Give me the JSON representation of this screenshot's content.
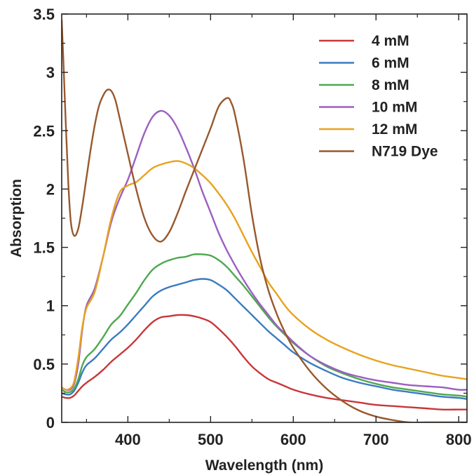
{
  "chart_data": {
    "type": "line",
    "title": "",
    "xlabel": "Wavelength (nm)",
    "ylabel": "Absorption",
    "xlim": [
      320,
      810
    ],
    "ylim": [
      0,
      3.5
    ],
    "xticks": [
      400,
      500,
      600,
      700,
      800
    ],
    "yticks": [
      0,
      0.5,
      1,
      1.5,
      2,
      2.5,
      3,
      3.5
    ],
    "xtick_labels": [
      "400",
      "500",
      "600",
      "700",
      "800"
    ],
    "ytick_labels": [
      "0",
      "0.5",
      "1",
      "1.5",
      "2",
      "2.5",
      "3",
      "3.5"
    ],
    "grid": false,
    "legend_position": "top-right",
    "series": [
      {
        "name": "4 mM",
        "color": "#c8373a",
        "points": [
          [
            320,
            0.22
          ],
          [
            325,
            0.21
          ],
          [
            330,
            0.21
          ],
          [
            335,
            0.23
          ],
          [
            340,
            0.27
          ],
          [
            345,
            0.31
          ],
          [
            350,
            0.34
          ],
          [
            360,
            0.39
          ],
          [
            370,
            0.45
          ],
          [
            380,
            0.52
          ],
          [
            390,
            0.58
          ],
          [
            400,
            0.64
          ],
          [
            410,
            0.71
          ],
          [
            420,
            0.79
          ],
          [
            430,
            0.86
          ],
          [
            440,
            0.9
          ],
          [
            450,
            0.91
          ],
          [
            460,
            0.92
          ],
          [
            470,
            0.92
          ],
          [
            480,
            0.91
          ],
          [
            490,
            0.89
          ],
          [
            500,
            0.86
          ],
          [
            510,
            0.8
          ],
          [
            520,
            0.73
          ],
          [
            530,
            0.65
          ],
          [
            540,
            0.56
          ],
          [
            550,
            0.48
          ],
          [
            560,
            0.42
          ],
          [
            570,
            0.37
          ],
          [
            580,
            0.34
          ],
          [
            590,
            0.31
          ],
          [
            600,
            0.28
          ],
          [
            620,
            0.24
          ],
          [
            640,
            0.21
          ],
          [
            660,
            0.19
          ],
          [
            680,
            0.17
          ],
          [
            700,
            0.15
          ],
          [
            720,
            0.14
          ],
          [
            740,
            0.13
          ],
          [
            760,
            0.12
          ],
          [
            780,
            0.11
          ],
          [
            800,
            0.11
          ],
          [
            810,
            0.11
          ]
        ]
      },
      {
        "name": "6 mM",
        "color": "#3b7bbf",
        "points": [
          [
            320,
            0.25
          ],
          [
            325,
            0.24
          ],
          [
            330,
            0.24
          ],
          [
            335,
            0.27
          ],
          [
            340,
            0.34
          ],
          [
            345,
            0.43
          ],
          [
            350,
            0.49
          ],
          [
            360,
            0.55
          ],
          [
            370,
            0.63
          ],
          [
            380,
            0.71
          ],
          [
            390,
            0.77
          ],
          [
            400,
            0.84
          ],
          [
            410,
            0.92
          ],
          [
            420,
            1.0
          ],
          [
            430,
            1.08
          ],
          [
            440,
            1.13
          ],
          [
            450,
            1.16
          ],
          [
            460,
            1.18
          ],
          [
            470,
            1.2
          ],
          [
            480,
            1.22
          ],
          [
            490,
            1.23
          ],
          [
            500,
            1.22
          ],
          [
            510,
            1.18
          ],
          [
            520,
            1.13
          ],
          [
            530,
            1.06
          ],
          [
            540,
            0.99
          ],
          [
            550,
            0.92
          ],
          [
            560,
            0.85
          ],
          [
            570,
            0.78
          ],
          [
            580,
            0.72
          ],
          [
            590,
            0.66
          ],
          [
            600,
            0.6
          ],
          [
            620,
            0.51
          ],
          [
            640,
            0.44
          ],
          [
            660,
            0.38
          ],
          [
            680,
            0.34
          ],
          [
            700,
            0.31
          ],
          [
            720,
            0.28
          ],
          [
            740,
            0.26
          ],
          [
            760,
            0.24
          ],
          [
            780,
            0.22
          ],
          [
            800,
            0.21
          ],
          [
            810,
            0.2
          ]
        ]
      },
      {
        "name": "8 mM",
        "color": "#4ea84f",
        "points": [
          [
            320,
            0.28
          ],
          [
            325,
            0.26
          ],
          [
            330,
            0.26
          ],
          [
            335,
            0.29
          ],
          [
            340,
            0.37
          ],
          [
            345,
            0.49
          ],
          [
            350,
            0.56
          ],
          [
            360,
            0.63
          ],
          [
            370,
            0.73
          ],
          [
            380,
            0.84
          ],
          [
            390,
            0.91
          ],
          [
            400,
            1.01
          ],
          [
            410,
            1.11
          ],
          [
            420,
            1.22
          ],
          [
            430,
            1.31
          ],
          [
            440,
            1.36
          ],
          [
            450,
            1.39
          ],
          [
            460,
            1.41
          ],
          [
            470,
            1.42
          ],
          [
            480,
            1.44
          ],
          [
            490,
            1.44
          ],
          [
            500,
            1.43
          ],
          [
            510,
            1.39
          ],
          [
            520,
            1.33
          ],
          [
            530,
            1.25
          ],
          [
            540,
            1.17
          ],
          [
            550,
            1.08
          ],
          [
            560,
            0.99
          ],
          [
            570,
            0.9
          ],
          [
            580,
            0.82
          ],
          [
            590,
            0.75
          ],
          [
            600,
            0.68
          ],
          [
            620,
            0.57
          ],
          [
            640,
            0.48
          ],
          [
            660,
            0.42
          ],
          [
            680,
            0.37
          ],
          [
            700,
            0.33
          ],
          [
            720,
            0.3
          ],
          [
            740,
            0.28
          ],
          [
            760,
            0.26
          ],
          [
            780,
            0.24
          ],
          [
            800,
            0.23
          ],
          [
            810,
            0.22
          ]
        ]
      },
      {
        "name": "10 mM",
        "color": "#9b5fc0",
        "points": [
          [
            320,
            0.3
          ],
          [
            325,
            0.28
          ],
          [
            330,
            0.28
          ],
          [
            335,
            0.33
          ],
          [
            340,
            0.5
          ],
          [
            345,
            0.8
          ],
          [
            350,
            1.0
          ],
          [
            360,
            1.15
          ],
          [
            370,
            1.42
          ],
          [
            380,
            1.72
          ],
          [
            390,
            1.92
          ],
          [
            400,
            2.08
          ],
          [
            410,
            2.28
          ],
          [
            420,
            2.48
          ],
          [
            430,
            2.62
          ],
          [
            440,
            2.67
          ],
          [
            450,
            2.63
          ],
          [
            460,
            2.52
          ],
          [
            470,
            2.36
          ],
          [
            480,
            2.18
          ],
          [
            490,
            1.98
          ],
          [
            500,
            1.8
          ],
          [
            510,
            1.62
          ],
          [
            520,
            1.47
          ],
          [
            530,
            1.34
          ],
          [
            540,
            1.22
          ],
          [
            550,
            1.11
          ],
          [
            560,
            1.01
          ],
          [
            570,
            0.92
          ],
          [
            580,
            0.83
          ],
          [
            590,
            0.76
          ],
          [
            600,
            0.69
          ],
          [
            620,
            0.57
          ],
          [
            640,
            0.49
          ],
          [
            660,
            0.43
          ],
          [
            680,
            0.39
          ],
          [
            700,
            0.36
          ],
          [
            720,
            0.34
          ],
          [
            740,
            0.32
          ],
          [
            760,
            0.31
          ],
          [
            780,
            0.3
          ],
          [
            800,
            0.28
          ],
          [
            810,
            0.28
          ]
        ]
      },
      {
        "name": "12 mM",
        "color": "#e8a21f",
        "points": [
          [
            320,
            0.3
          ],
          [
            325,
            0.28
          ],
          [
            330,
            0.29
          ],
          [
            335,
            0.35
          ],
          [
            340,
            0.55
          ],
          [
            345,
            0.82
          ],
          [
            350,
            0.98
          ],
          [
            360,
            1.12
          ],
          [
            370,
            1.42
          ],
          [
            380,
            1.75
          ],
          [
            390,
            1.97
          ],
          [
            400,
            2.03
          ],
          [
            410,
            2.06
          ],
          [
            420,
            2.12
          ],
          [
            430,
            2.18
          ],
          [
            440,
            2.21
          ],
          [
            450,
            2.23
          ],
          [
            460,
            2.24
          ],
          [
            470,
            2.22
          ],
          [
            480,
            2.18
          ],
          [
            490,
            2.12
          ],
          [
            500,
            2.05
          ],
          [
            510,
            1.96
          ],
          [
            520,
            1.86
          ],
          [
            530,
            1.74
          ],
          [
            540,
            1.6
          ],
          [
            550,
            1.46
          ],
          [
            560,
            1.33
          ],
          [
            570,
            1.2
          ],
          [
            580,
            1.1
          ],
          [
            590,
            1.0
          ],
          [
            600,
            0.92
          ],
          [
            620,
            0.8
          ],
          [
            640,
            0.71
          ],
          [
            660,
            0.64
          ],
          [
            680,
            0.58
          ],
          [
            700,
            0.53
          ],
          [
            720,
            0.49
          ],
          [
            740,
            0.46
          ],
          [
            760,
            0.43
          ],
          [
            780,
            0.4
          ],
          [
            800,
            0.38
          ],
          [
            810,
            0.37
          ]
        ]
      },
      {
        "name": "N719 Dye",
        "color": "#98582d",
        "points": [
          [
            320,
            3.45
          ],
          [
            322,
            3.1
          ],
          [
            325,
            2.55
          ],
          [
            328,
            2.05
          ],
          [
            331,
            1.72
          ],
          [
            335,
            1.6
          ],
          [
            340,
            1.66
          ],
          [
            345,
            1.86
          ],
          [
            350,
            2.1
          ],
          [
            355,
            2.34
          ],
          [
            360,
            2.55
          ],
          [
            365,
            2.71
          ],
          [
            370,
            2.8
          ],
          [
            375,
            2.85
          ],
          [
            380,
            2.84
          ],
          [
            385,
            2.76
          ],
          [
            390,
            2.61
          ],
          [
            400,
            2.3
          ],
          [
            410,
            2.0
          ],
          [
            420,
            1.75
          ],
          [
            430,
            1.6
          ],
          [
            440,
            1.55
          ],
          [
            450,
            1.63
          ],
          [
            460,
            1.79
          ],
          [
            470,
            1.98
          ],
          [
            480,
            2.16
          ],
          [
            490,
            2.34
          ],
          [
            500,
            2.52
          ],
          [
            510,
            2.71
          ],
          [
            520,
            2.78
          ],
          [
            525,
            2.74
          ],
          [
            530,
            2.62
          ],
          [
            540,
            2.25
          ],
          [
            550,
            1.78
          ],
          [
            560,
            1.4
          ],
          [
            570,
            1.13
          ],
          [
            580,
            0.93
          ],
          [
            590,
            0.77
          ],
          [
            600,
            0.64
          ],
          [
            620,
            0.44
          ],
          [
            640,
            0.29
          ],
          [
            660,
            0.18
          ],
          [
            680,
            0.1
          ],
          [
            700,
            0.05
          ],
          [
            720,
            0.02
          ],
          [
            740,
            0.0
          ],
          [
            760,
            0.0
          ],
          [
            780,
            0.0
          ],
          [
            800,
            0.0
          ],
          [
            810,
            0.0
          ]
        ]
      }
    ]
  }
}
